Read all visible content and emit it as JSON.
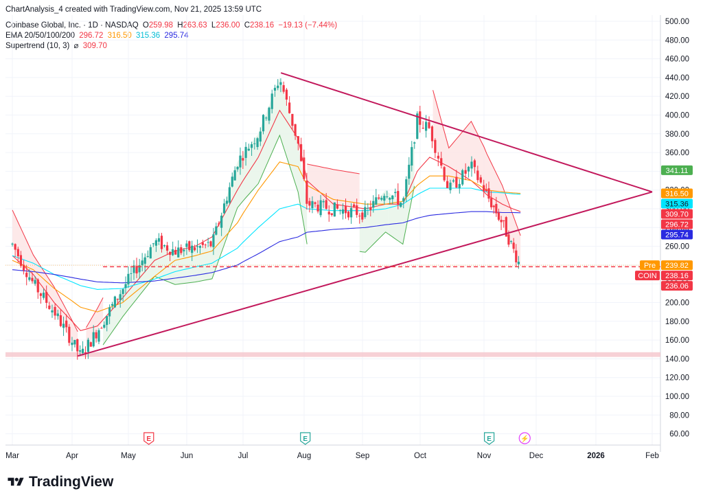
{
  "header": {
    "author_line": "ChartAnalysis_4 created with TradingView.com, Nov 21, 2025 13:59 UTC",
    "symbol": "Coinbase Global, Inc. · 1D · NASDAQ",
    "open_label": "O",
    "open": "259.98",
    "high_label": "H",
    "high": "263.63",
    "low_label": "L",
    "low": "236.00",
    "close_label": "C",
    "close": "238.16",
    "change": "−19.13 (−7.44%)",
    "ema_label": "EMA 20/50/100/200",
    "ema20": "296.72",
    "ema50": "316.50",
    "ema100": "315.36",
    "ema200": "295.74",
    "supertrend_label": "Supertrend (10, 3)",
    "supertrend_symbol": "⌀",
    "supertrend": "309.70"
  },
  "price_labels": [
    {
      "text": "341.11",
      "price": 341.11,
      "color": "#4caf50"
    },
    {
      "text": "316.50",
      "price": 316.5,
      "color": "#ff9800"
    },
    {
      "text": "315.36",
      "price": 315.36,
      "color": "#00e5ff"
    },
    {
      "text": "309.70",
      "price": 309.7,
      "color": "#f23645"
    },
    {
      "text": "296.72",
      "price": 296.72,
      "color": "#f23645"
    },
    {
      "text": "295.74",
      "price": 295.74,
      "color": "#2a2ae0"
    },
    {
      "text": "239.82",
      "price": 239.82,
      "color": "#ff9800",
      "tag": "Pre"
    },
    {
      "text": "238.16",
      "price": 238.16,
      "color": "#f23645",
      "tag": "COIN"
    },
    {
      "text": "236.06",
      "price": 236.06,
      "color": "#f23645"
    }
  ],
  "event_markers": [
    {
      "type": "earnings",
      "symbol": "E",
      "month_pos": 2.35,
      "color": "#f23645"
    },
    {
      "type": "earnings",
      "symbol": "E",
      "month_pos": 5.02,
      "color": "#26a69a"
    },
    {
      "type": "earnings",
      "symbol": "E",
      "month_pos": 8.1,
      "color": "#26a69a"
    },
    {
      "type": "split",
      "symbol": "⚡",
      "month_pos": 8.78,
      "color": "#e040fb"
    }
  ],
  "brand": "TradingView",
  "colors": {
    "up": "#26a69a",
    "down": "#f23645",
    "trendline": "#c2185b",
    "ema20": "#f23645",
    "ema50": "#ff9800",
    "ema100": "#00e5ff",
    "ema200": "#2a2ae0",
    "supertrend_up": "#4caf50",
    "supertrend_down": "#f23645",
    "support_zone": "#f4c2c8"
  },
  "chart_data": {
    "type": "candlestick",
    "title": "Coinbase Global, Inc. · 1D · NASDAQ",
    "xlabel": "",
    "ylabel": "",
    "x_tick_labels": [
      "Mar",
      "Apr",
      "May",
      "Jun",
      "Jul",
      "Aug",
      "Sep",
      "Oct",
      "Nov",
      "Dec",
      "2026",
      "Feb"
    ],
    "y_ticks": [
      60,
      80,
      100,
      120,
      140,
      160,
      180,
      200,
      220,
      240,
      260,
      280,
      300,
      320,
      340,
      360,
      380,
      400,
      420,
      440,
      460,
      480,
      500
    ],
    "y_tick_labels": [
      "60.00",
      "80.00",
      "100.00",
      "120.00",
      "140.00",
      "160.00",
      "180.00",
      "200.00",
      "220.00",
      "240.00",
      "260.00",
      "280.00",
      "300.00",
      "320.00",
      "340.00",
      "360.00",
      "380.00",
      "400.00",
      "420.00",
      "440.00",
      "460.00",
      "480.00",
      "500.00"
    ],
    "ylim": [
      50,
      505
    ],
    "grid": true,
    "trendlines": [
      {
        "name": "upper",
        "from": {
          "t": 4.62,
          "price": 445
        },
        "to": {
          "t": 11.0,
          "price": 318
        }
      },
      {
        "name": "lower",
        "from": {
          "t": 1.1,
          "price": 143
        },
        "to": {
          "t": 11.0,
          "price": 318
        }
      }
    ],
    "support_zone": [
      142,
      147
    ],
    "last_price_line": 238.16,
    "key_points": [
      {
        "t": 0.0,
        "price": 262
      },
      {
        "t": 0.35,
        "price": 220
      },
      {
        "t": 0.7,
        "price": 190
      },
      {
        "t": 1.15,
        "price": 143
      },
      {
        "t": 1.45,
        "price": 170
      },
      {
        "t": 1.9,
        "price": 215
      },
      {
        "t": 2.45,
        "price": 265
      },
      {
        "t": 2.8,
        "price": 255
      },
      {
        "t": 3.15,
        "price": 258
      },
      {
        "t": 3.45,
        "price": 262
      },
      {
        "t": 3.9,
        "price": 350
      },
      {
        "t": 4.25,
        "price": 380
      },
      {
        "t": 4.6,
        "price": 440
      },
      {
        "t": 4.9,
        "price": 370
      },
      {
        "t": 5.05,
        "price": 305
      },
      {
        "t": 5.5,
        "price": 300
      },
      {
        "t": 6.05,
        "price": 295
      },
      {
        "t": 6.4,
        "price": 320
      },
      {
        "t": 6.7,
        "price": 305
      },
      {
        "t": 6.95,
        "price": 395
      },
      {
        "t": 7.15,
        "price": 385
      },
      {
        "t": 7.45,
        "price": 320
      },
      {
        "t": 7.8,
        "price": 345
      },
      {
        "t": 8.05,
        "price": 315
      },
      {
        "t": 8.35,
        "price": 285
      },
      {
        "t": 8.55,
        "price": 258
      },
      {
        "t": 8.7,
        "price": 238
      }
    ],
    "series": [
      {
        "name": "EMA 20",
        "values": [
          250,
          230,
          200,
          170,
          175,
          205,
          245,
          255,
          260,
          270,
          320,
          355,
          405,
          375,
          330,
          305,
          300,
          305,
          305,
          340,
          355,
          345,
          330,
          315,
          305,
          300,
          297
        ]
      },
      {
        "name": "EMA 50",
        "values": [
          245,
          235,
          215,
          195,
          190,
          200,
          228,
          245,
          250,
          255,
          285,
          320,
          350,
          345,
          325,
          310,
          305,
          305,
          308,
          325,
          335,
          335,
          330,
          320,
          318,
          317,
          316.5
        ]
      },
      {
        "name": "EMA 100",
        "values": [
          250,
          242,
          230,
          218,
          214,
          215,
          225,
          233,
          238,
          242,
          258,
          280,
          300,
          305,
          300,
          298,
          298,
          300,
          305,
          315,
          322,
          322,
          322,
          318,
          317,
          316,
          315.36
        ]
      },
      {
        "name": "EMA 200",
        "values": [
          235,
          233,
          230,
          225,
          222,
          221,
          223,
          226,
          229,
          232,
          240,
          252,
          265,
          270,
          275,
          278,
          280,
          283,
          285,
          290,
          293,
          295,
          297,
          297,
          296,
          296,
          295.74
        ]
      }
    ]
  }
}
